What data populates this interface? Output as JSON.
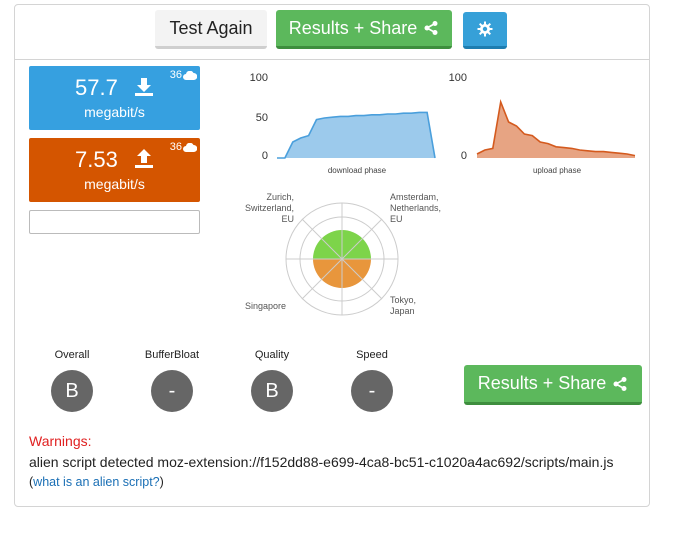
{
  "toolbar": {
    "test_again_label": "Test Again",
    "results_share_label": "Results + Share",
    "settings_icon": "gear-icon",
    "share_icon": "share-icon"
  },
  "speeds": {
    "download": {
      "value": "57.7",
      "unit": "megabit/s",
      "badge": "36",
      "icon": "download-icon",
      "color": "#36a0e0"
    },
    "upload": {
      "value": "7.53",
      "unit": "megabit/s",
      "badge": "36",
      "icon": "upload-icon",
      "color": "#d45500"
    }
  },
  "chart_data": [
    {
      "type": "area",
      "xlabel": "download phase",
      "ylim": [
        0,
        100
      ],
      "yticks": [
        "100",
        "50",
        "0"
      ],
      "color": "#4a9fdc",
      "x": [
        0,
        1,
        2,
        3,
        4,
        5,
        6,
        7,
        8,
        9,
        10,
        11,
        12,
        13,
        14,
        15,
        16,
        17,
        18,
        19,
        20
      ],
      "values": [
        0,
        0,
        20,
        25,
        28,
        48,
        50,
        51,
        52,
        52,
        53,
        53,
        54,
        54,
        55,
        55,
        56,
        56,
        57,
        57,
        0
      ]
    },
    {
      "type": "area",
      "xlabel": "upload phase",
      "ylim": [
        0,
        100
      ],
      "yticks": [
        "100",
        "0"
      ],
      "color": "#d45a1e",
      "x": [
        0,
        1,
        2,
        3,
        4,
        5,
        6,
        7,
        8,
        9,
        10,
        11,
        12,
        13,
        14,
        15,
        16,
        17,
        18,
        19,
        20
      ],
      "values": [
        5,
        10,
        12,
        70,
        45,
        40,
        30,
        28,
        20,
        18,
        14,
        13,
        12,
        10,
        9,
        8,
        8,
        7,
        6,
        5,
        3
      ]
    }
  ],
  "radar": {
    "cities": [
      {
        "lines": [
          "Zurich,",
          "Switzerland,",
          "EU"
        ]
      },
      {
        "lines": [
          "Amsterdam,",
          "Netherlands,",
          "EU"
        ]
      },
      {
        "lines": [
          "Singapore"
        ]
      },
      {
        "lines": [
          "Tokyo,",
          "Japan"
        ]
      }
    ],
    "colors": {
      "upper": "#7dd44a",
      "lower": "#e8963c"
    }
  },
  "grades": [
    {
      "title": "Overall",
      "value": "B"
    },
    {
      "title": "BufferBloat",
      "value": "-"
    },
    {
      "title": "Quality",
      "value": "B"
    },
    {
      "title": "Speed",
      "value": "-"
    }
  ],
  "results_share_label": "Results + Share",
  "warnings": {
    "title": "Warnings:",
    "text": "alien script detected moz-extension://f152dd88-e699-4ca8-bc51-c1020a4ac692/scripts/main.js",
    "open_paren": "(",
    "link": "what is an alien script?",
    "close_paren": ")"
  }
}
